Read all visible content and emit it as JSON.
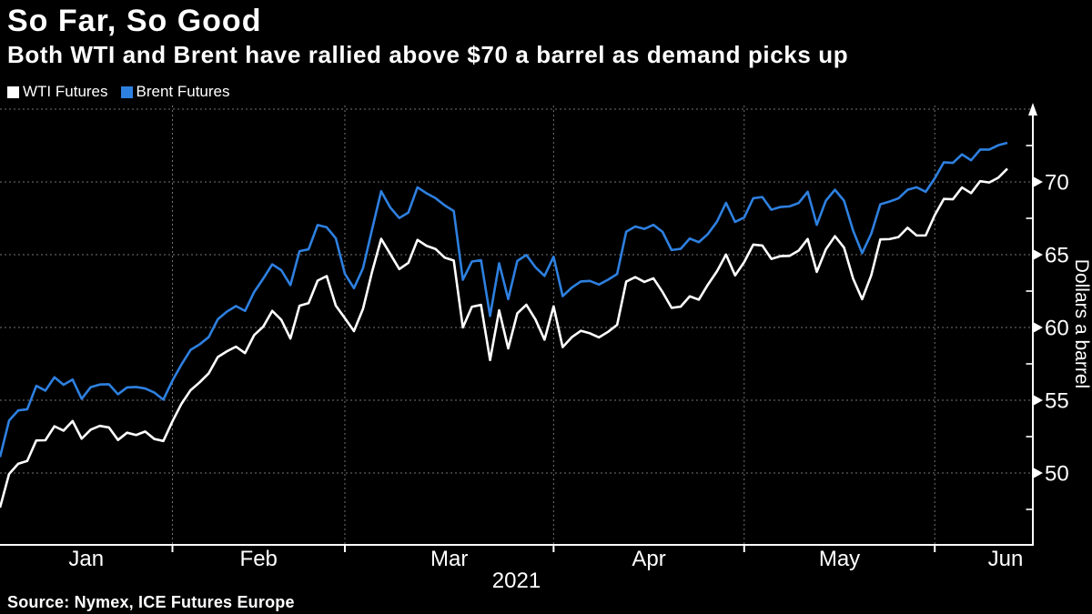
{
  "header": {
    "title": "So Far, So Good",
    "subtitle": "Both WTI and Brent have rallied above $70 a barrel as demand picks up"
  },
  "legend": [
    {
      "label": "WTI Futures",
      "color": "#ffffff"
    },
    {
      "label": "Brent Futures",
      "color": "#2e80e0"
    }
  ],
  "source": "Source: Nymex, ICE Futures Europe",
  "colors": {
    "background": "#000000",
    "text": "#ffffff",
    "gridline": "#909090",
    "axis": "#ffffff",
    "wti_line": "#ffffff",
    "brent_line": "#2e80e0"
  },
  "chart_data": {
    "type": "line",
    "title": "So Far, So Good",
    "xlabel": "",
    "ylabel": "Dollars a barrel",
    "x_axis_year": "2021",
    "x_tick_labels": [
      "Jan",
      "Feb",
      "Mar",
      "Apr",
      "May",
      "Jun"
    ],
    "y_ticks": [
      50,
      55,
      60,
      65,
      70
    ],
    "y_gridlines": [
      50,
      55,
      60,
      65,
      70,
      75
    ],
    "y_minor_ticks": [
      47.5,
      52.5,
      57.5,
      62.5,
      67.5,
      72.5
    ],
    "ylim": [
      45,
      75
    ],
    "grid": "dashed",
    "legend_position": "top-left",
    "y_axis_side": "right",
    "dates": [
      "2021-01-04",
      "2021-01-05",
      "2021-01-06",
      "2021-01-07",
      "2021-01-08",
      "2021-01-11",
      "2021-01-12",
      "2021-01-13",
      "2021-01-14",
      "2021-01-15",
      "2021-01-19",
      "2021-01-20",
      "2021-01-21",
      "2021-01-22",
      "2021-01-25",
      "2021-01-26",
      "2021-01-27",
      "2021-01-28",
      "2021-01-29",
      "2021-02-01",
      "2021-02-02",
      "2021-02-03",
      "2021-02-04",
      "2021-02-05",
      "2021-02-08",
      "2021-02-09",
      "2021-02-10",
      "2021-02-11",
      "2021-02-12",
      "2021-02-16",
      "2021-02-17",
      "2021-02-18",
      "2021-02-19",
      "2021-02-22",
      "2021-02-23",
      "2021-02-24",
      "2021-02-25",
      "2021-02-26",
      "2021-03-01",
      "2021-03-02",
      "2021-03-03",
      "2021-03-04",
      "2021-03-05",
      "2021-03-08",
      "2021-03-09",
      "2021-03-10",
      "2021-03-11",
      "2021-03-12",
      "2021-03-15",
      "2021-03-16",
      "2021-03-17",
      "2021-03-18",
      "2021-03-19",
      "2021-03-22",
      "2021-03-23",
      "2021-03-24",
      "2021-03-25",
      "2021-03-26",
      "2021-03-29",
      "2021-03-30",
      "2021-03-31",
      "2021-04-01",
      "2021-04-05",
      "2021-04-06",
      "2021-04-07",
      "2021-04-08",
      "2021-04-09",
      "2021-04-12",
      "2021-04-13",
      "2021-04-14",
      "2021-04-15",
      "2021-04-16",
      "2021-04-19",
      "2021-04-20",
      "2021-04-21",
      "2021-04-22",
      "2021-04-23",
      "2021-04-26",
      "2021-04-27",
      "2021-04-28",
      "2021-04-29",
      "2021-04-30",
      "2021-05-03",
      "2021-05-04",
      "2021-05-05",
      "2021-05-06",
      "2021-05-07",
      "2021-05-10",
      "2021-05-11",
      "2021-05-12",
      "2021-05-13",
      "2021-05-14",
      "2021-05-17",
      "2021-05-18",
      "2021-05-19",
      "2021-05-20",
      "2021-05-21",
      "2021-05-24",
      "2021-05-25",
      "2021-05-26",
      "2021-05-27",
      "2021-05-28",
      "2021-05-31",
      "2021-06-01",
      "2021-06-02",
      "2021-06-03",
      "2021-06-04",
      "2021-06-07",
      "2021-06-08",
      "2021-06-09",
      "2021-06-10",
      "2021-06-11"
    ],
    "series": [
      {
        "name": "WTI Futures",
        "color": "#ffffff",
        "values": [
          47.62,
          49.93,
          50.63,
          50.83,
          52.24,
          52.25,
          53.21,
          52.91,
          53.57,
          52.36,
          52.98,
          53.24,
          53.13,
          52.27,
          52.77,
          52.61,
          52.85,
          52.34,
          52.2,
          53.55,
          54.76,
          55.69,
          56.23,
          56.85,
          57.97,
          58.36,
          58.68,
          58.24,
          59.47,
          60.05,
          61.14,
          60.52,
          59.24,
          61.49,
          61.67,
          63.22,
          63.53,
          61.5,
          60.64,
          59.75,
          61.28,
          63.83,
          66.09,
          65.05,
          64.01,
          64.44,
          66.02,
          65.61,
          65.39,
          64.8,
          64.6,
          60.0,
          61.42,
          61.55,
          57.76,
          61.18,
          58.56,
          60.97,
          61.56,
          60.55,
          59.16,
          61.45,
          58.65,
          59.33,
          59.77,
          59.6,
          59.32,
          59.7,
          60.18,
          63.15,
          63.46,
          63.13,
          63.38,
          62.44,
          61.35,
          61.43,
          62.14,
          61.91,
          62.94,
          63.86,
          65.01,
          63.58,
          64.49,
          65.69,
          65.63,
          64.71,
          64.9,
          64.92,
          65.28,
          66.08,
          63.82,
          65.37,
          66.27,
          65.49,
          63.36,
          61.94,
          63.58,
          66.05,
          66.07,
          66.21,
          66.85,
          66.32,
          66.32,
          67.72,
          68.83,
          68.81,
          69.62,
          69.23,
          70.05,
          69.96,
          70.29,
          70.91
        ]
      },
      {
        "name": "Brent Futures",
        "color": "#2e80e0",
        "values": [
          51.09,
          53.6,
          54.3,
          54.38,
          55.99,
          55.66,
          56.58,
          56.06,
          56.42,
          55.1,
          55.9,
          56.08,
          56.1,
          55.41,
          55.88,
          55.91,
          55.81,
          55.53,
          55.04,
          56.35,
          57.46,
          58.46,
          58.84,
          59.34,
          60.56,
          61.09,
          61.47,
          61.14,
          62.43,
          63.35,
          64.34,
          63.93,
          62.91,
          65.24,
          65.37,
          67.04,
          66.88,
          66.13,
          63.69,
          62.7,
          64.07,
          66.74,
          69.36,
          68.24,
          67.52,
          67.9,
          69.63,
          69.22,
          68.88,
          68.39,
          68.0,
          63.28,
          64.53,
          64.62,
          60.79,
          64.41,
          61.95,
          64.57,
          64.98,
          64.14,
          63.54,
          64.86,
          62.15,
          62.74,
          63.16,
          63.2,
          62.95,
          63.28,
          63.67,
          66.58,
          66.94,
          66.77,
          67.05,
          66.57,
          65.32,
          65.4,
          66.11,
          65.86,
          66.42,
          67.27,
          68.56,
          67.25,
          67.56,
          68.88,
          68.96,
          68.09,
          68.28,
          68.32,
          68.55,
          69.32,
          67.05,
          68.71,
          69.46,
          68.71,
          66.66,
          65.11,
          66.44,
          68.46,
          68.65,
          68.87,
          69.46,
          69.63,
          69.32,
          70.25,
          71.35,
          71.31,
          71.89,
          71.49,
          72.22,
          72.22,
          72.52,
          72.69
        ]
      }
    ]
  }
}
